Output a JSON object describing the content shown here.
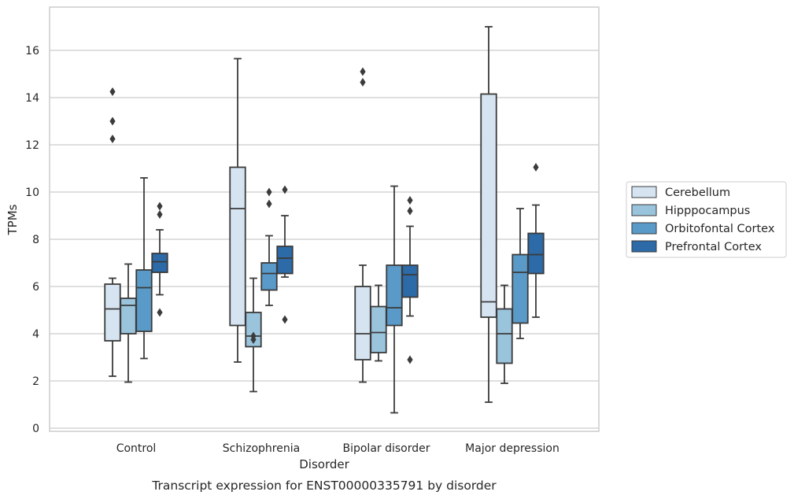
{
  "chart_data": {
    "type": "box",
    "title": "",
    "caption": "Transcript expression for ENST00000335791 by disorder",
    "xlabel": "Disorder",
    "ylabel": "TPMs",
    "ylim": [
      -0.2,
      17.8
    ],
    "yticks": [
      0,
      2,
      4,
      6,
      8,
      10,
      12,
      14,
      16
    ],
    "grid": "horizontal",
    "legend_position": "right",
    "categories": [
      "Control",
      "Schizophrenia",
      "Bipolar disorder",
      "Major depression"
    ],
    "series": [
      {
        "name": "Cerebellum",
        "color": "#d6e4f1",
        "boxes": [
          {
            "whislo": 2.2,
            "q1": 3.7,
            "med": 5.05,
            "q3": 6.1,
            "whishi": 6.35,
            "fliers": [
              12.25,
              13.0,
              14.25
            ]
          },
          {
            "whislo": 2.8,
            "q1": 4.35,
            "med": 9.3,
            "q3": 11.05,
            "whishi": 15.65,
            "fliers": []
          },
          {
            "whislo": 1.95,
            "q1": 2.9,
            "med": 4.0,
            "q3": 6.0,
            "whishi": 6.9,
            "fliers": [
              14.65,
              15.1
            ]
          },
          {
            "whislo": 1.1,
            "q1": 4.7,
            "med": 5.35,
            "q3": 14.15,
            "whishi": 17.0,
            "fliers": []
          }
        ]
      },
      {
        "name": "Hipppocampus",
        "color": "#9ac3dc",
        "boxes": [
          {
            "whislo": 1.95,
            "q1": 4.0,
            "med": 5.2,
            "q3": 5.5,
            "whishi": 6.95,
            "fliers": []
          },
          {
            "whislo": 1.55,
            "q1": 3.45,
            "med": 3.9,
            "q3": 4.9,
            "whishi": 6.35,
            "fliers": [
              3.75,
              3.9
            ]
          },
          {
            "whislo": 2.85,
            "q1": 3.2,
            "med": 4.05,
            "q3": 5.15,
            "whishi": 6.05,
            "fliers": []
          },
          {
            "whislo": 1.9,
            "q1": 2.75,
            "med": 4.0,
            "q3": 5.05,
            "whishi": 6.05,
            "fliers": []
          }
        ]
      },
      {
        "name": "Orbitofontal Cortex",
        "color": "#5a9ac8",
        "boxes": [
          {
            "whislo": 2.95,
            "q1": 4.1,
            "med": 5.95,
            "q3": 6.7,
            "whishi": 10.6,
            "fliers": []
          },
          {
            "whislo": 5.2,
            "q1": 5.85,
            "med": 6.55,
            "q3": 7.0,
            "whishi": 8.15,
            "fliers": [
              9.5,
              10.0
            ]
          },
          {
            "whislo": 0.65,
            "q1": 4.35,
            "med": 5.1,
            "q3": 6.9,
            "whishi": 10.25,
            "fliers": []
          },
          {
            "whislo": 3.8,
            "q1": 4.45,
            "med": 6.6,
            "q3": 7.35,
            "whishi": 9.3,
            "fliers": []
          }
        ]
      },
      {
        "name": "Prefrontal Cortex",
        "color": "#2c6aa8",
        "boxes": [
          {
            "whislo": 5.65,
            "q1": 6.6,
            "med": 7.05,
            "q3": 7.4,
            "whishi": 8.4,
            "fliers": [
              4.9,
              9.05,
              9.4
            ]
          },
          {
            "whislo": 6.4,
            "q1": 6.55,
            "med": 7.2,
            "q3": 7.7,
            "whishi": 9.0,
            "fliers": [
              4.6,
              10.1
            ]
          },
          {
            "whislo": 4.75,
            "q1": 5.55,
            "med": 6.5,
            "q3": 6.9,
            "whishi": 8.55,
            "fliers": [
              2.9,
              9.2,
              9.65
            ]
          },
          {
            "whislo": 4.7,
            "q1": 6.55,
            "med": 7.35,
            "q3": 8.25,
            "whishi": 9.45,
            "fliers": [
              11.05
            ]
          }
        ]
      }
    ]
  }
}
